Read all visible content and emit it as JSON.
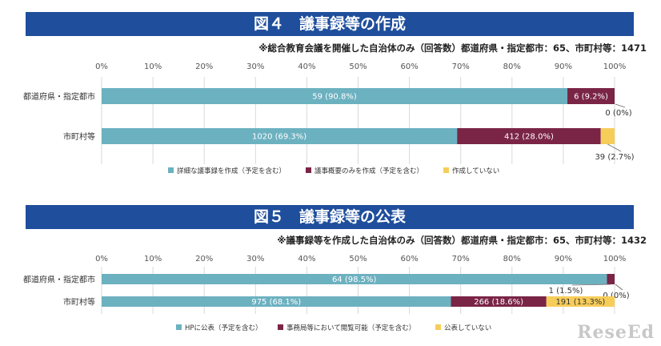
{
  "charts": [
    {
      "title": "図４　議事録等の作成",
      "note": "※総合教育会議を開催した自治体のみ（回答数）都道府県・指定都市：65、市町村等：1471"
    },
    {
      "title": "図５　議事録等の公表",
      "note": "※議事録等を作成した自治体のみ（回答数）都道府県・指定都市：65、市町村等：1432"
    }
  ],
  "watermark": "ReseEd",
  "chart_data": [
    {
      "type": "bar",
      "stacked": true,
      "orientation": "horizontal",
      "title": "図４　議事録等の作成",
      "categories": [
        "都道府県・指定都市",
        "市町村等"
      ],
      "xticks": [
        "0%",
        "10%",
        "20%",
        "30%",
        "40%",
        "50%",
        "60%",
        "70%",
        "80%",
        "90%",
        "100%"
      ],
      "xlim": [
        0,
        100
      ],
      "grid": true,
      "legend": "bottom",
      "series": [
        {
          "name": "詳細な議事録を作成（予定を含む）",
          "color": "#6cb1c0",
          "values": [
            90.8,
            69.3
          ],
          "labels": [
            "59 (90.8%)",
            "1020 (69.3%)"
          ]
        },
        {
          "name": "議事概要のみを作成（予定を含む）",
          "color": "#7a2446",
          "values": [
            9.2,
            28.0
          ],
          "labels": [
            "6 (9.2%)",
            "412 (28.0%)"
          ]
        },
        {
          "name": "作成していない",
          "color": "#f7cd5a",
          "values": [
            0,
            2.7
          ],
          "labels": [
            "0 (0%)",
            "39 (2.7%)"
          ]
        }
      ]
    },
    {
      "type": "bar",
      "stacked": true,
      "orientation": "horizontal",
      "title": "図５　議事録等の公表",
      "categories": [
        "都道府県・指定都市",
        "市町村等"
      ],
      "xticks": [
        "0%",
        "10%",
        "20%",
        "30%",
        "40%",
        "50%",
        "60%",
        "70%",
        "80%",
        "90%",
        "100%"
      ],
      "xlim": [
        0,
        100
      ],
      "grid": true,
      "legend": "bottom",
      "series": [
        {
          "name": "HPに公表（予定を含む）",
          "color": "#6cb1c0",
          "values": [
            98.5,
            68.1
          ],
          "labels": [
            "64 (98.5%)",
            "975 (68.1%)"
          ]
        },
        {
          "name": "事務局等において閲覧可能（予定を含む）",
          "color": "#7a2446",
          "values": [
            1.5,
            18.6
          ],
          "labels": [
            "1 (1.5%)",
            "266 (18.6%)"
          ]
        },
        {
          "name": "公表していない",
          "color": "#f7cd5a",
          "values": [
            0,
            13.3
          ],
          "labels": [
            "0 (0%)",
            "191 (13.3%)"
          ]
        }
      ]
    }
  ]
}
